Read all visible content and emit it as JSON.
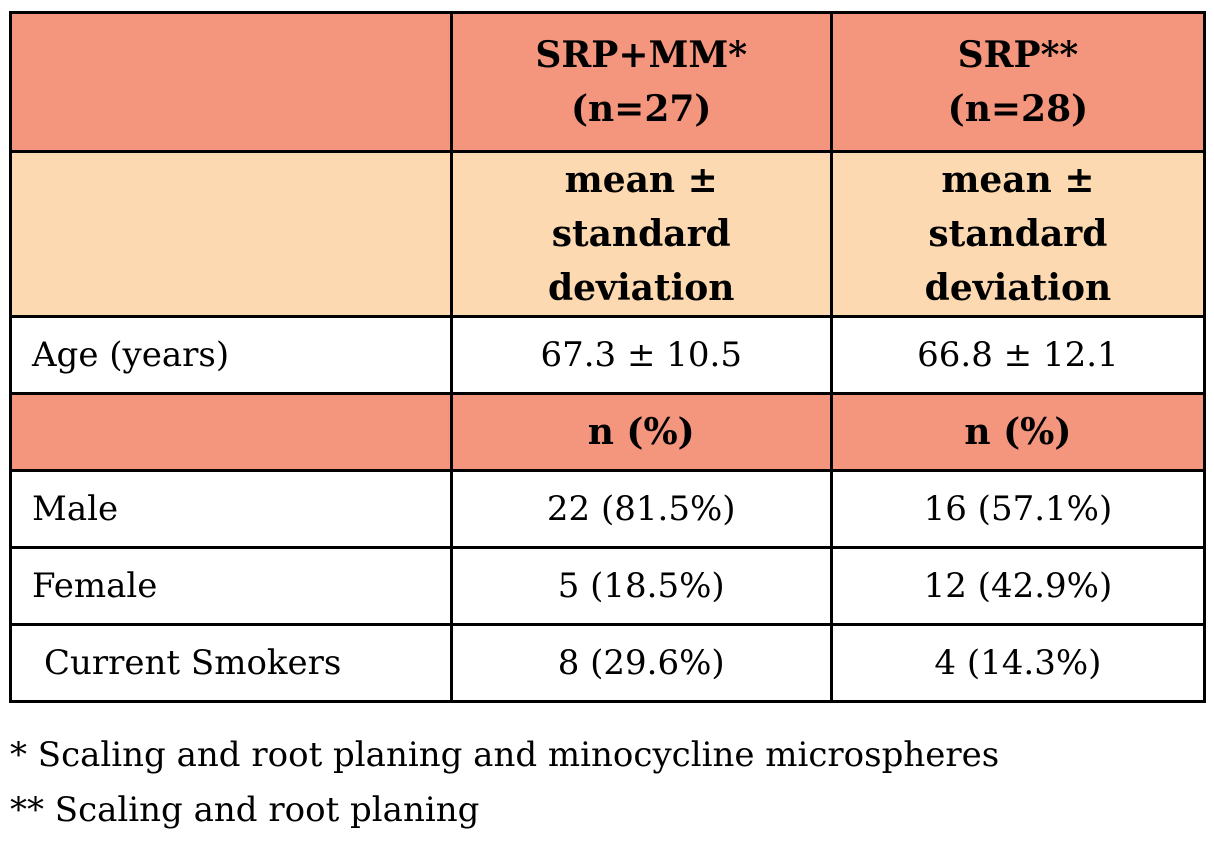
{
  "table": {
    "groups": [
      {
        "name": "SRP+MM*",
        "n": "(n=27)"
      },
      {
        "name": "SRP**",
        "n": "(n=28)"
      }
    ],
    "stat_header_1": "mean ± standard deviation",
    "age_row": {
      "label": "Age (years)",
      "values": [
        "67.3 ± 10.5",
        "66.8 ± 12.1"
      ]
    },
    "stat_header_2": "n (%)",
    "rows": [
      {
        "label": "Male",
        "values": [
          "22 (81.5%)",
          "16 (57.1%)"
        ]
      },
      {
        "label": "Female",
        "values": [
          "5 (18.5%)",
          "12 (42.9%)"
        ]
      },
      {
        "label": "Current Smokers",
        "values": [
          "8 (29.6%)",
          "4 (14.3%)"
        ]
      }
    ]
  },
  "footnotes": [
    "* Scaling and root planing and minocycline microspheres",
    "** Scaling and root planing"
  ],
  "colors": {
    "header": "#F4957D",
    "subheader": "#FCD9B1"
  }
}
